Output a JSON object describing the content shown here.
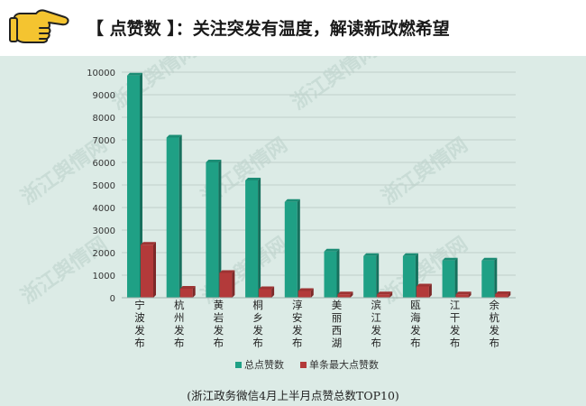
{
  "header": {
    "title": "【 点赞数 】：关注突发有温度，解读新政燃希望",
    "icon": "pointing-hand-icon"
  },
  "watermark": "浙江舆情网",
  "chart_data": {
    "type": "bar",
    "title": "",
    "categories": [
      "宁波发布",
      "杭州发布",
      "黄岩发布",
      "桐乡发布",
      "淳安发布",
      "美丽西湖",
      "滨江发布",
      "瓯海发布",
      "江干发布",
      "余杭发布"
    ],
    "series": [
      {
        "name": "总点赞数",
        "color": "#1fa085",
        "values": [
          9850,
          7100,
          6000,
          5200,
          4250,
          2050,
          1850,
          1850,
          1650,
          1650
        ]
      },
      {
        "name": "单条最大点赞数",
        "color": "#b33a3a",
        "values": [
          2350,
          400,
          1100,
          380,
          300,
          150,
          150,
          500,
          150,
          160
        ]
      }
    ],
    "ylim": [
      0,
      10000
    ],
    "yticks": [
      0,
      1000,
      2000,
      3000,
      4000,
      5000,
      6000,
      7000,
      8000,
      9000,
      10000
    ],
    "grid": true,
    "legend_position": "bottom",
    "caption": "(浙江政务微信4月上半月点赞总数TOP10)"
  }
}
